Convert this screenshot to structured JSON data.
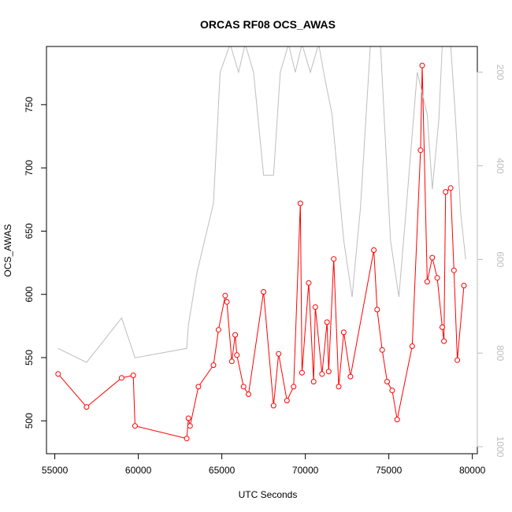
{
  "chart_data": {
    "type": "line",
    "title": "ORCAS RF08 OCS_AWAS",
    "xlabel": "UTC Seconds",
    "ylabel": "OCS_AWAS",
    "xlim": [
      54500,
      80300
    ],
    "ylim": [
      474,
      796
    ],
    "xticks": [
      55000,
      60000,
      65000,
      70000,
      75000,
      80000
    ],
    "xtick_labels": [
      "55000",
      "60000",
      "65000",
      "70000",
      "75000",
      "80000"
    ],
    "yticks": [
      500,
      550,
      600,
      650,
      700,
      750
    ],
    "ytick_labels": [
      "500",
      "550",
      "600",
      "650",
      "700",
      "750"
    ],
    "y2lim": [
      1015,
      145
    ],
    "y2ticks": [
      200,
      400,
      600,
      800,
      1000
    ],
    "y2tick_labels": [
      "200",
      "400",
      "600",
      "800",
      "1000"
    ],
    "grid": false,
    "series": [
      {
        "color": "#ff0000",
        "axis": "left",
        "markers": "open-circle",
        "x": [
          55200,
          56900,
          59000,
          59700,
          59800,
          62900,
          63000,
          63100,
          63600,
          64500,
          64800,
          65200,
          65300,
          65600,
          65800,
          65900,
          66300,
          66600,
          67500,
          68100,
          68400,
          68900,
          69300,
          69700,
          69800,
          70200,
          70500,
          70600,
          71000,
          71300,
          71400,
          71700,
          72000,
          72300,
          72700,
          74100,
          74300,
          74600,
          74900,
          75200,
          75500,
          76400,
          76900,
          77000,
          77300,
          77600,
          77900,
          78200,
          78300,
          78400,
          78700,
          78900,
          79100,
          79500
        ],
        "y": [
          537,
          511,
          534,
          536,
          496,
          486,
          502,
          496,
          527,
          544,
          572,
          599,
          594,
          547,
          568,
          552,
          527,
          521,
          602,
          512,
          553,
          516,
          527,
          672,
          538,
          609,
          531,
          590,
          537,
          578,
          539,
          628,
          527,
          570,
          535,
          635,
          588,
          556,
          531,
          524,
          501,
          559,
          714,
          781,
          610,
          629,
          613,
          574,
          563,
          681,
          684,
          619,
          548,
          607
        ]
      },
      {
        "color": "#bebebe",
        "axis": "right",
        "markers": "none",
        "x": [
          55200,
          56900,
          59000,
          59800,
          62900,
          63000,
          63500,
          64500,
          64900,
          65500,
          66000,
          66400,
          66900,
          67500,
          68100,
          68500,
          69000,
          69400,
          69800,
          70300,
          70800,
          71100,
          71600,
          72300,
          72800,
          73300,
          73900,
          74500,
          75100,
          75600,
          76000,
          76700,
          77300,
          77600,
          78000,
          78200,
          78400,
          78700,
          79000,
          79300,
          79600
        ],
        "y": [
          790,
          820,
          725,
          810,
          790,
          740,
          630,
          480,
          200,
          140,
          200,
          140,
          200,
          420,
          420,
          200,
          140,
          200,
          140,
          200,
          140,
          200,
          290,
          560,
          680,
          490,
          140,
          140,
          560,
          680,
          510,
          200,
          290,
          450,
          300,
          140,
          140,
          140,
          300,
          500,
          600
        ]
      }
    ]
  }
}
